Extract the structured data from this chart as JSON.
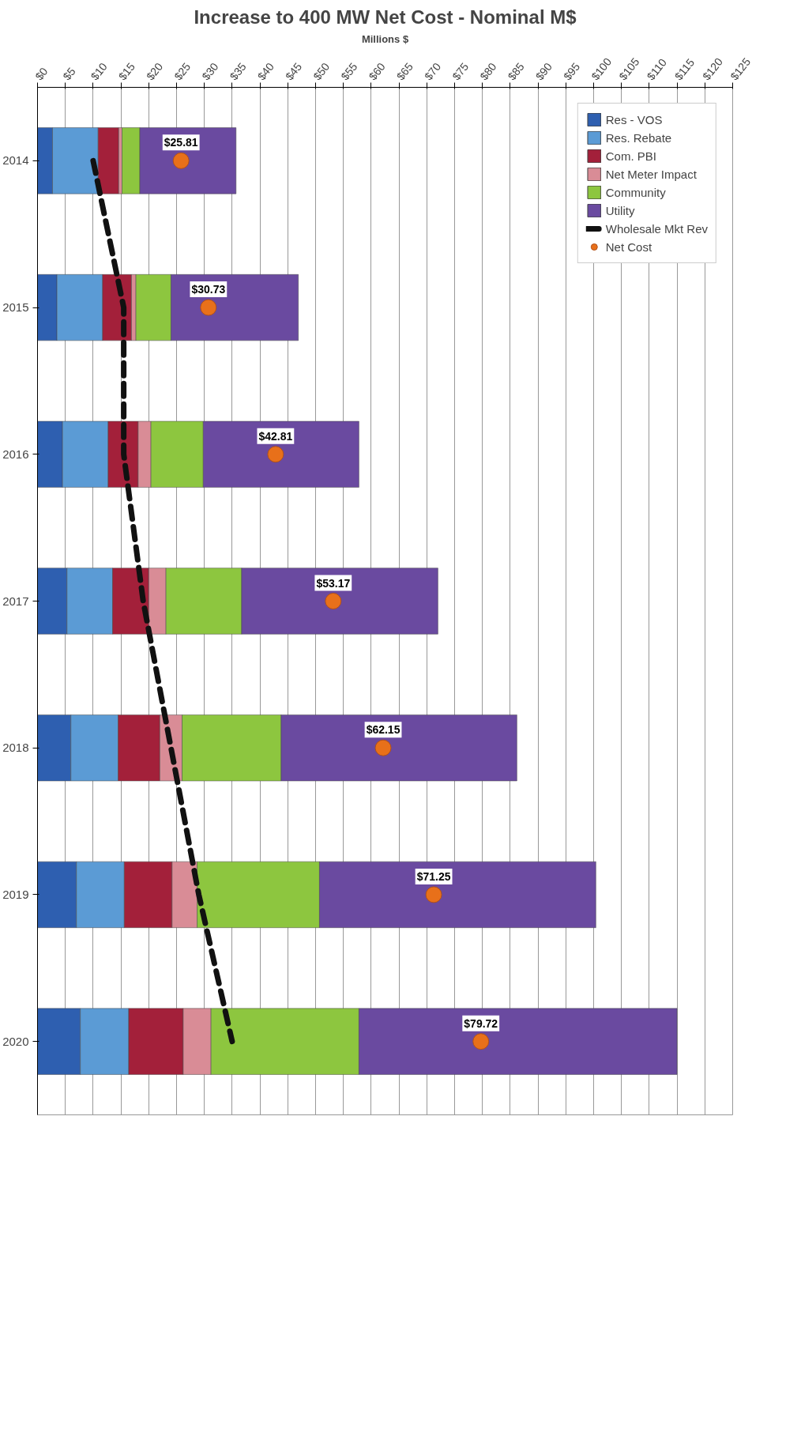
{
  "chart_data": {
    "type": "bar",
    "orientation": "horizontal",
    "stacked": true,
    "title": "Increase to 400 MW Net Cost - Nominal M$",
    "xlabel": "Millions $",
    "categories": [
      "2014",
      "2015",
      "2016",
      "2017",
      "2018",
      "2019",
      "2020"
    ],
    "series": [
      {
        "name": "Res - VOS",
        "color": "#2e5fb0",
        "values": [
          2.7,
          3.5,
          4.5,
          5.3,
          6.0,
          7.0,
          7.7
        ]
      },
      {
        "name": "Res. Rebate",
        "color": "#5b9bd5",
        "values": [
          8.2,
          8.2,
          8.2,
          8.2,
          8.5,
          8.6,
          8.7
        ]
      },
      {
        "name": "Com. PBI",
        "color": "#a3203a",
        "values": [
          3.7,
          5.2,
          5.4,
          6.5,
          7.5,
          8.6,
          9.8
        ]
      },
      {
        "name": "Net Meter Impact",
        "color": "#d98c96",
        "values": [
          0.6,
          0.8,
          2.3,
          3.1,
          4.0,
          4.5,
          5.0
        ]
      },
      {
        "name": "Community",
        "color": "#8dc63f",
        "values": [
          3.2,
          6.3,
          9.4,
          13.6,
          17.8,
          22.0,
          26.6
        ]
      },
      {
        "name": "Utility",
        "color": "#6a4aa0",
        "values": [
          17.3,
          22.9,
          28.0,
          35.3,
          42.4,
          49.7,
          57.2
        ]
      },
      {
        "name": "Wholesale Mkt Rev",
        "color": "#111111",
        "type": "line",
        "line_style": "dashed",
        "values": [
          10,
          15.5,
          15.5,
          19,
          24,
          29,
          35
        ]
      },
      {
        "name": "Net Cost",
        "color": "#e8701a",
        "type": "scatter",
        "marker": "circle",
        "values": [
          25.81,
          30.73,
          42.81,
          53.17,
          62.15,
          71.25,
          79.72
        ],
        "value_labels": [
          "$25.81",
          "$30.73",
          "$42.81",
          "$53.17",
          "$62.15",
          "$71.25",
          "$79.72"
        ]
      }
    ],
    "xlim": [
      0,
      125
    ],
    "xticks": [
      {
        "value": 0,
        "label": "$0"
      },
      {
        "value": 5,
        "label": "$5"
      },
      {
        "value": 10,
        "label": "$10"
      },
      {
        "value": 15,
        "label": "$15"
      },
      {
        "value": 20,
        "label": "$20"
      },
      {
        "value": 25,
        "label": "$25"
      },
      {
        "value": 30,
        "label": "$30"
      },
      {
        "value": 35,
        "label": "$35"
      },
      {
        "value": 40,
        "label": "$40"
      },
      {
        "value": 45,
        "label": "$45"
      },
      {
        "value": 50,
        "label": "$50"
      },
      {
        "value": 55,
        "label": "$55"
      },
      {
        "value": 60,
        "label": "$60"
      },
      {
        "value": 65,
        "label": "$65"
      },
      {
        "value": 70,
        "label": "$70"
      },
      {
        "value": 75,
        "label": "$75"
      },
      {
        "value": 80,
        "label": "$80"
      },
      {
        "value": 85,
        "label": "$85"
      },
      {
        "value": 90,
        "label": "$90"
      },
      {
        "value": 95,
        "label": "$95"
      },
      {
        "value": 100,
        "label": "$100"
      },
      {
        "value": 105,
        "label": "$105"
      },
      {
        "value": 110,
        "label": "$110"
      },
      {
        "value": 115,
        "label": "$115"
      },
      {
        "value": 120,
        "label": "$120"
      },
      {
        "value": 125,
        "label": "$125"
      }
    ],
    "grid": "x",
    "legend": "top right"
  }
}
